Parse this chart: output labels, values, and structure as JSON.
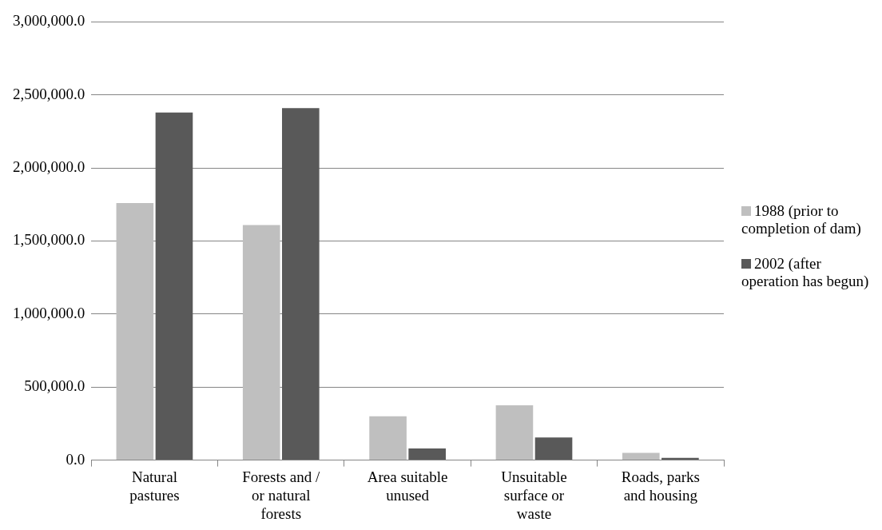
{
  "chart_data": {
    "type": "bar",
    "categories": [
      "Natural pastures",
      "Forests and / or natural forests",
      "Area suitable unused",
      "Unsuitable surface or waste",
      "Roads, parks and housing"
    ],
    "series": [
      {
        "name": "1988 (prior to completion of dam)",
        "color": "#bfbfbf",
        "values": [
          1760000,
          1610000,
          300000,
          375000,
          50000
        ]
      },
      {
        "name": "2002 (after operation has begun)",
        "color": "#595959",
        "values": [
          2380000,
          2410000,
          80000,
          155000,
          15000
        ]
      }
    ],
    "ylim": [
      0,
      3000000
    ],
    "yticks": [
      {
        "value": 0,
        "label": "0.0"
      },
      {
        "value": 500000,
        "label": "500,000.0"
      },
      {
        "value": 1000000,
        "label": "1,000,000.0"
      },
      {
        "value": 1500000,
        "label": "1,500,000.0"
      },
      {
        "value": 2000000,
        "label": "2,000,000.0"
      },
      {
        "value": 2500000,
        "label": "2,500,000.0"
      },
      {
        "value": 3000000,
        "label": "3,000,000.0"
      }
    ],
    "grid": "y",
    "legend": "right"
  }
}
